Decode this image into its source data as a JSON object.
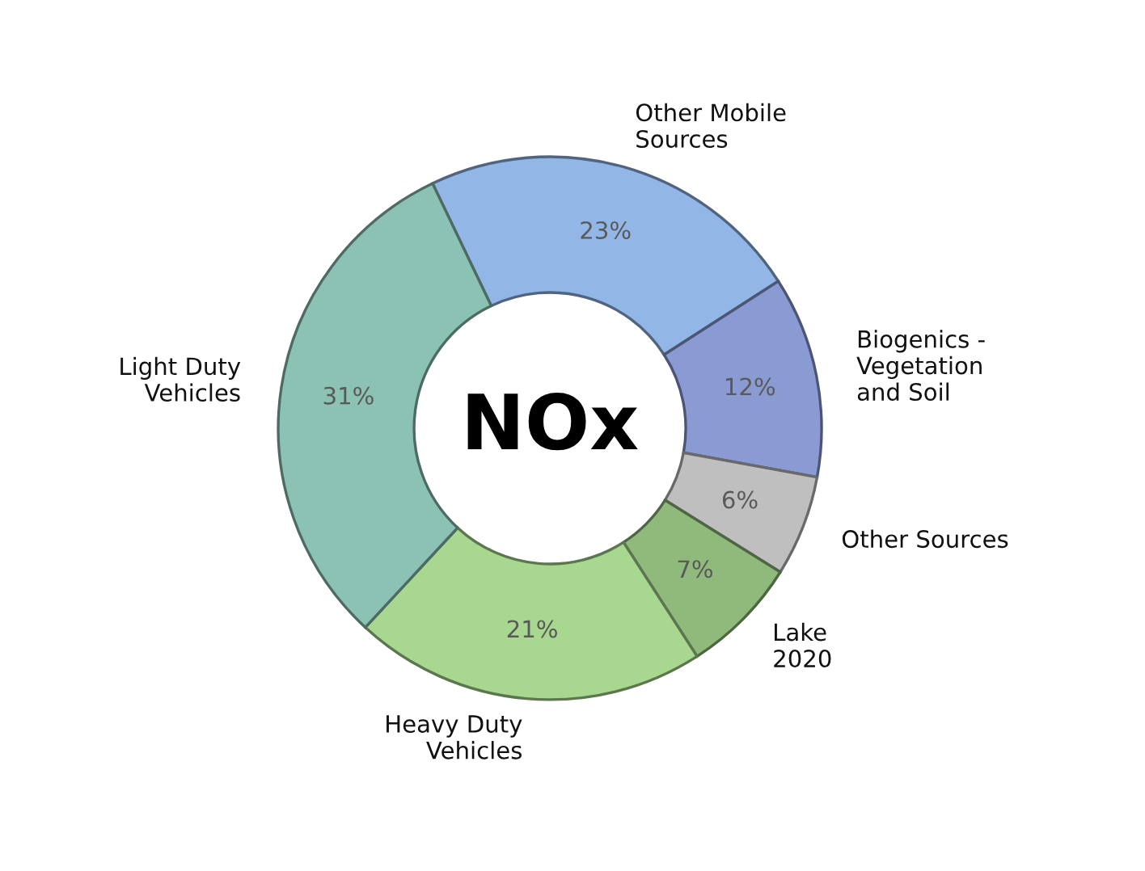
{
  "chart_data": {
    "type": "donut",
    "categories": [
      "Other Mobile\nSources",
      "Biogenics -\nVegetation\nand Soil",
      "Other Sources",
      "Lake\n2020",
      "Heavy Duty\nVehicles",
      "Light Duty\nVehicles"
    ],
    "values": [
      23,
      12,
      6,
      7,
      21,
      31
    ],
    "value_labels": [
      "23%",
      "12%",
      "6%",
      "7%",
      "21%",
      "31%"
    ],
    "colors": [
      "#92b6e6",
      "#8a9bd3",
      "#bfbfbf",
      "#8fba7c",
      "#a8d88f",
      "#8cc2b3"
    ],
    "annotations": [
      "NOx"
    ]
  }
}
